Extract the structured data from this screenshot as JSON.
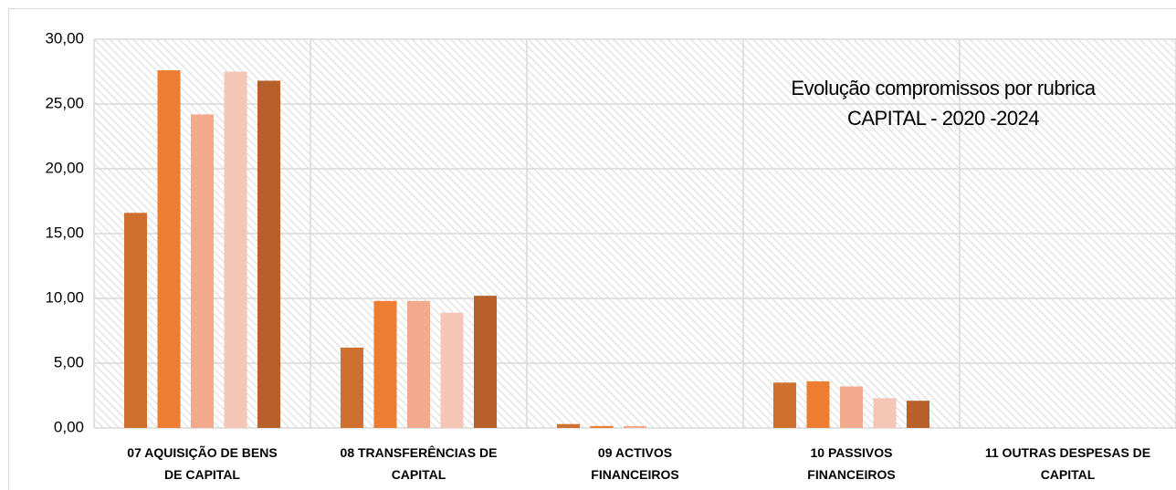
{
  "chart_data": {
    "type": "bar",
    "title": "Evolução compromissos por rubrica",
    "subtitle": "CAPITAL - 2020 -2024",
    "categories": [
      "07 AQUISIÇÃO DE BENS DE CAPITAL",
      "08 TRANSFERÊNCIAS DE CAPITAL",
      "09 ACTIVOS FINANCEIROS",
      "10 PASSIVOS FINANCEIROS",
      "11 OUTRAS DESPESAS DE CAPITAL"
    ],
    "series": [
      {
        "color": "#d0702e",
        "values": [
          16.6,
          6.2,
          0.3,
          3.5,
          0
        ]
      },
      {
        "color": "#ed7d31",
        "values": [
          27.6,
          9.8,
          0.15,
          3.6,
          0
        ]
      },
      {
        "color": "#f2a98c",
        "values": [
          24.2,
          9.8,
          0.15,
          3.2,
          0
        ]
      },
      {
        "color": "#f5c6b5",
        "values": [
          27.5,
          8.9,
          0,
          2.3,
          0
        ]
      },
      {
        "color": "#b8602a",
        "values": [
          26.8,
          10.2,
          0,
          2.1,
          0
        ]
      }
    ],
    "ylim": [
      0,
      30
    ],
    "yticks": [
      {
        "value": 0,
        "label": "0,00"
      },
      {
        "value": 5,
        "label": "5,00"
      },
      {
        "value": 10,
        "label": "10,00"
      },
      {
        "value": 15,
        "label": "15,00"
      },
      {
        "value": 20,
        "label": "20,00"
      },
      {
        "value": 25,
        "label": "25,00"
      },
      {
        "value": 30,
        "label": "30,00"
      }
    ],
    "grid": true
  }
}
